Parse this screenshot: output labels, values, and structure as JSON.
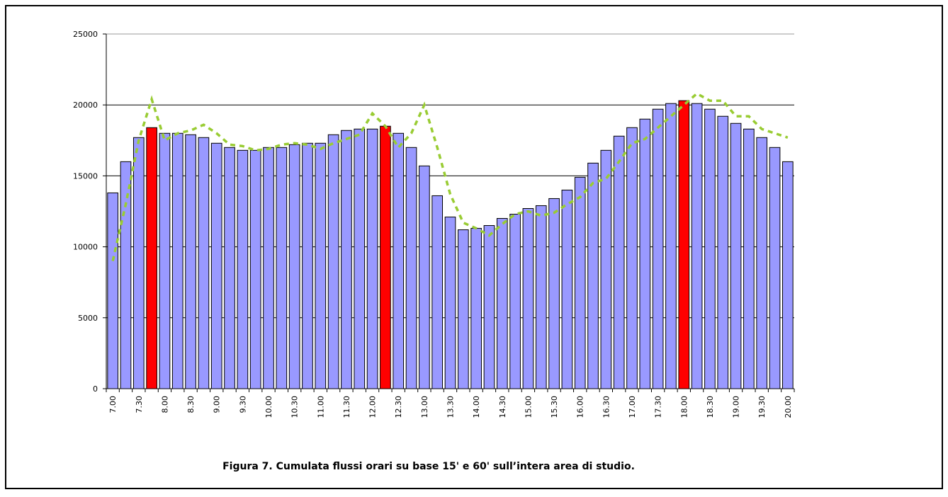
{
  "chart_data": {
    "type": "bar",
    "caption": "Figura 7. Cumulata flussi orari su base 15' e 60' sull’intera area di studio.",
    "categories": [
      "7.00",
      null,
      "7.30",
      null,
      "8.00",
      null,
      "8.30",
      null,
      "9.00",
      null,
      "9.30",
      null,
      "10.00",
      null,
      "10.30",
      null,
      "11.00",
      null,
      "11.30",
      null,
      "12.00",
      null,
      "12.30",
      null,
      "13.00",
      null,
      "13.30",
      null,
      "14.00",
      null,
      "14.30",
      null,
      "15.00",
      null,
      "15.30",
      null,
      "16.00",
      null,
      "16.30",
      null,
      "17.00",
      null,
      "17.30",
      null,
      "18.00",
      null,
      "18.30",
      null,
      "19.00",
      null,
      "19.30",
      null,
      "20.00"
    ],
    "series": [
      {
        "type": "bar",
        "color": "#9999ff",
        "colors": [
          "#9999ff",
          "#9999ff",
          "#9999ff",
          "#ff0000",
          "#9999ff",
          "#9999ff",
          "#9999ff",
          "#9999ff",
          "#9999ff",
          "#9999ff",
          "#9999ff",
          "#9999ff",
          "#9999ff",
          "#9999ff",
          "#9999ff",
          "#9999ff",
          "#9999ff",
          "#9999ff",
          "#9999ff",
          "#9999ff",
          "#9999ff",
          "#ff0000",
          "#9999ff",
          "#9999ff",
          "#9999ff",
          "#9999ff",
          "#9999ff",
          "#9999ff",
          "#9999ff",
          "#9999ff",
          "#9999ff",
          "#9999ff",
          "#9999ff",
          "#9999ff",
          "#9999ff",
          "#9999ff",
          "#9999ff",
          "#9999ff",
          "#9999ff",
          "#9999ff",
          "#9999ff",
          "#9999ff",
          "#9999ff",
          "#9999ff",
          "#ff0000",
          "#9999ff",
          "#9999ff",
          "#9999ff",
          "#9999ff",
          "#9999ff",
          "#9999ff",
          "#9999ff",
          "#9999ff"
        ],
        "values": [
          13800,
          16000,
          17700,
          18400,
          18000,
          18000,
          17900,
          17700,
          17300,
          17000,
          16800,
          16800,
          17000,
          17000,
          17200,
          17300,
          17300,
          17900,
          18200,
          18300,
          18300,
          18500,
          18000,
          17000,
          15700,
          13600,
          12100,
          11200,
          11300,
          11500,
          12000,
          12300,
          12700,
          12900,
          13400,
          14000,
          14900,
          15900,
          16800,
          17800,
          18400,
          19000,
          19700,
          20100,
          20300,
          20100,
          19700,
          19200,
          18700,
          18300,
          17700,
          17000,
          16000
        ]
      },
      {
        "type": "line",
        "color": "#99cc33",
        "dashed": true,
        "values": [
          9000,
          13000,
          17500,
          20400,
          17500,
          18000,
          18200,
          18600,
          18000,
          17200,
          17100,
          16800,
          16900,
          17200,
          17300,
          17200,
          16900,
          17300,
          17600,
          17900,
          19400,
          18500,
          17000,
          18000,
          20000,
          17000,
          13700,
          11700,
          11300,
          10800,
          11600,
          12300,
          12500,
          12200,
          12400,
          13000,
          13500,
          14500,
          14800,
          16000,
          17300,
          17600,
          18400,
          19200,
          20000,
          20800,
          20300,
          20300,
          19200,
          19200,
          18300,
          18000,
          17700
        ]
      }
    ],
    "ylim": [
      0,
      25000
    ],
    "yticks": [
      0,
      5000,
      10000,
      15000,
      20000,
      25000
    ],
    "grid": true
  }
}
